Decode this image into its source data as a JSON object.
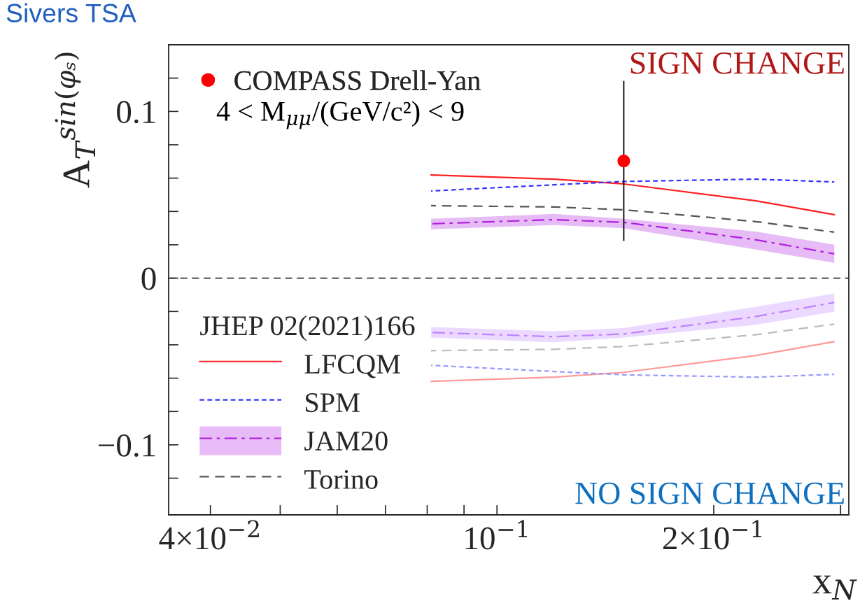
{
  "chart_data": {
    "type": "line",
    "title": "Sivers TSA",
    "xlabel": "x$_{N}$",
    "ylabel": "A$_{T}$$^{sin(φₛ)}$",
    "legend_title": "JHEP 02(2021)166",
    "log": "x",
    "xlim": [
      0.035,
      0.308
    ],
    "ylim": [
      -0.142,
      0.14
    ],
    "xticks": [
      {
        "value": 0.04,
        "label": "4×10$^{−2}$"
      },
      {
        "value": 0.05,
        "label": null
      },
      {
        "value": 0.06,
        "label": null
      },
      {
        "value": 0.07,
        "label": null
      },
      {
        "value": 0.08,
        "label": null
      },
      {
        "value": 0.09,
        "label": null
      },
      {
        "value": 0.1,
        "label": "10$^{−1}$"
      },
      {
        "value": 0.2,
        "label": "2×10$^{−1}$"
      },
      {
        "value": 0.3,
        "label": null
      }
    ],
    "yticks": [
      {
        "value": -0.12,
        "label": null
      },
      {
        "value": -0.1,
        "label": "−0.1"
      },
      {
        "value": -0.08,
        "label": null
      },
      {
        "value": -0.06,
        "label": null
      },
      {
        "value": -0.04,
        "label": null
      },
      {
        "value": -0.02,
        "label": null
      },
      0,
      {
        "value": 0.02,
        "label": null
      },
      {
        "value": 0.04,
        "label": null
      },
      {
        "value": 0.06,
        "label": null
      },
      {
        "value": 0.08,
        "label": null
      },
      {
        "value": 0.1,
        "label": "0.1"
      },
      {
        "value": 0.12,
        "label": null
      }
    ],
    "x": [
      0.081,
      0.12,
      0.15,
      0.229,
      0.294
    ],
    "legend": "left",
    "grid": false,
    "ref_lines": [
      {
        "axis": "y",
        "value": 0,
        "color": "#333333",
        "line_style": "dashed"
      }
    ],
    "series": [
      {
        "name": "LFCQM",
        "color": "#ff2020",
        "line_style": "solid",
        "values": [
          0.0619,
          0.0594,
          0.0565,
          0.0464,
          0.0381
        ]
      },
      {
        "name": "SPM",
        "color": "#3333ff",
        "line_style": "dotted",
        "values": [
          0.0523,
          0.056,
          0.058,
          0.0594,
          0.0577
        ]
      },
      {
        "name": "JAM20",
        "color": "#b020e0",
        "line_style": "dashdot",
        "values": [
          0.0326,
          0.0351,
          0.0335,
          0.023,
          0.0146
        ],
        "lower": [
          0.0293,
          0.0318,
          0.03,
          0.0172,
          0.0092
        ],
        "upper": [
          0.0356,
          0.0385,
          0.0356,
          0.028,
          0.0201
        ]
      },
      {
        "name": "Torino",
        "color": "#555555",
        "line_style": "dashed",
        "values": [
          0.0435,
          0.0427,
          0.041,
          0.0339,
          0.0276
        ]
      },
      {
        "color": "#ff9999",
        "line_style": "solid",
        "values": [
          -0.0619,
          -0.0594,
          -0.0565,
          -0.0464,
          -0.0381
        ]
      },
      {
        "color": "#9999ff",
        "line_style": "dotted",
        "values": [
          -0.0523,
          -0.056,
          -0.058,
          -0.0594,
          -0.0577
        ]
      },
      {
        "color": "#c080ff",
        "line_style": "dashdot",
        "values": [
          -0.0326,
          -0.0351,
          -0.0335,
          -0.023,
          -0.0146
        ],
        "lower": [
          -0.0356,
          -0.0385,
          -0.0356,
          -0.028,
          -0.0201
        ],
        "upper": [
          -0.0293,
          -0.0318,
          -0.03,
          -0.0172,
          -0.0092
        ]
      },
      {
        "color": "#bbbbbb",
        "line_style": "dashed",
        "values": [
          -0.0435,
          -0.0427,
          -0.041,
          -0.0339,
          -0.0276
        ]
      },
      {
        "type": "scatter",
        "name": "COMPASS Drell-Yan",
        "color": "#ff0000",
        "marker": "circle",
        "x": [
          0.15
        ],
        "values": [
          0.0703
        ],
        "errors": [
          0.048
        ]
      }
    ],
    "annotations": [
      "4 < M$_{μμ}$/(GeV/c²) < 9",
      "SIGN CHANGE",
      "NO SIGN CHANGE"
    ]
  }
}
